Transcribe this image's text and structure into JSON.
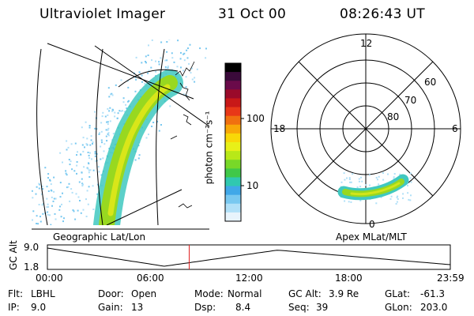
{
  "header": {
    "instrument": "Ultraviolet Imager",
    "date": "31 Oct 00",
    "time": "08:26:43 UT"
  },
  "colorbar": {
    "unit_label": "photon cm⁻²s⁻¹",
    "tick_high": "100",
    "tick_low": "10",
    "colors": [
      "#000000",
      "#3a0a3a",
      "#6a0a4a",
      "#9a0a2a",
      "#c81818",
      "#e83818",
      "#f07010",
      "#f8a808",
      "#f8d808",
      "#e8f018",
      "#b8e818",
      "#78d828",
      "#40c848",
      "#30c8b0",
      "#40a8e8",
      "#78c8f0",
      "#b0e0f8",
      "#e8f4fc"
    ]
  },
  "geo_panel": {
    "title": "Geographic Lat/Lon"
  },
  "polar_panel": {
    "title": "Apex MLat/MLT",
    "mlt_labels": {
      "top": "12",
      "left": "18",
      "right": "6",
      "bottom": "0"
    },
    "lat_labels": [
      "60",
      "70",
      "80"
    ]
  },
  "altitude_plot": {
    "ylabel": "GC Alt",
    "y_high": "9.0",
    "y_low": "1.8",
    "x_ticks": [
      "00:00",
      "06:00",
      "12:00",
      "18:00",
      "23:59"
    ],
    "current_time_fraction": 0.352,
    "marker_color": "#e02020"
  },
  "footer": {
    "row1": {
      "filter_label": "Flt:",
      "filter_value": "LBHL",
      "door_label": "Door:",
      "door_value": "Open",
      "mode_label": "Mode:",
      "mode_value": "Normal",
      "gcalt_label": "GC Alt:",
      "gcalt_value": "3.9 Re",
      "glat_label": "GLat:",
      "glat_value": "-61.3"
    },
    "row2": {
      "ip_label": "IP:",
      "ip_value": "9.0",
      "gain_label": "Gain:",
      "gain_value": "13",
      "dsp_label": "Dsp:",
      "dsp_value": "8.4",
      "seq_label": "Seq:",
      "seq_value": "39",
      "glon_label": "GLon:",
      "glon_value": "203.0"
    }
  }
}
